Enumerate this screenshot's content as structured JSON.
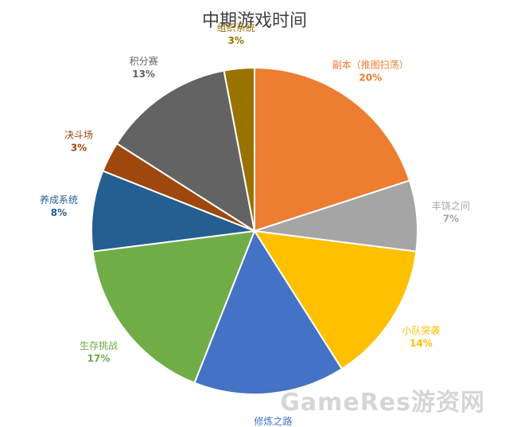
{
  "chart_data": {
    "type": "pie",
    "title": "中期游戏时间",
    "slices": [
      {
        "name": "副本（推图扫荡）",
        "value": 20,
        "label": "20%",
        "color": "#ED7D31"
      },
      {
        "name": "丰饶之间",
        "value": 7,
        "label": "7%",
        "color": "#A5A5A5"
      },
      {
        "name": "小队突袭",
        "value": 14,
        "label": "14%",
        "color": "#FFC000"
      },
      {
        "name": "修炼之路",
        "value": 15,
        "label": "15%",
        "color": "#4472C4"
      },
      {
        "name": "生存挑战",
        "value": 17,
        "label": "17%",
        "color": "#70AD47"
      },
      {
        "name": "养成系统",
        "value": 8,
        "label": "8%",
        "color": "#255E91"
      },
      {
        "name": "决斗场",
        "value": 3,
        "label": "3%",
        "color": "#9E480E"
      },
      {
        "name": "积分赛",
        "value": 13,
        "label": "13%",
        "color": "#636363"
      },
      {
        "name": "组织系统",
        "value": 3,
        "label": "3%",
        "color": "#997300"
      }
    ],
    "start": "12 o'clock",
    "direction": "clockwise",
    "legend": "none",
    "data_labels": "outside"
  },
  "watermark": "GameRes游资网"
}
